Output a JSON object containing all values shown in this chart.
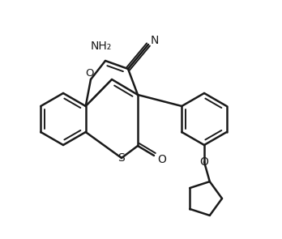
{
  "background_color": "#ffffff",
  "line_color": "#1a1a1a",
  "line_width": 1.8,
  "text_color": "#1a1a1a",
  "atoms": {
    "NH2_label": "NH₂",
    "CN_label": "N",
    "O1_label": "O",
    "S_label": "S",
    "O2_label": "O",
    "O3_label": "O"
  }
}
